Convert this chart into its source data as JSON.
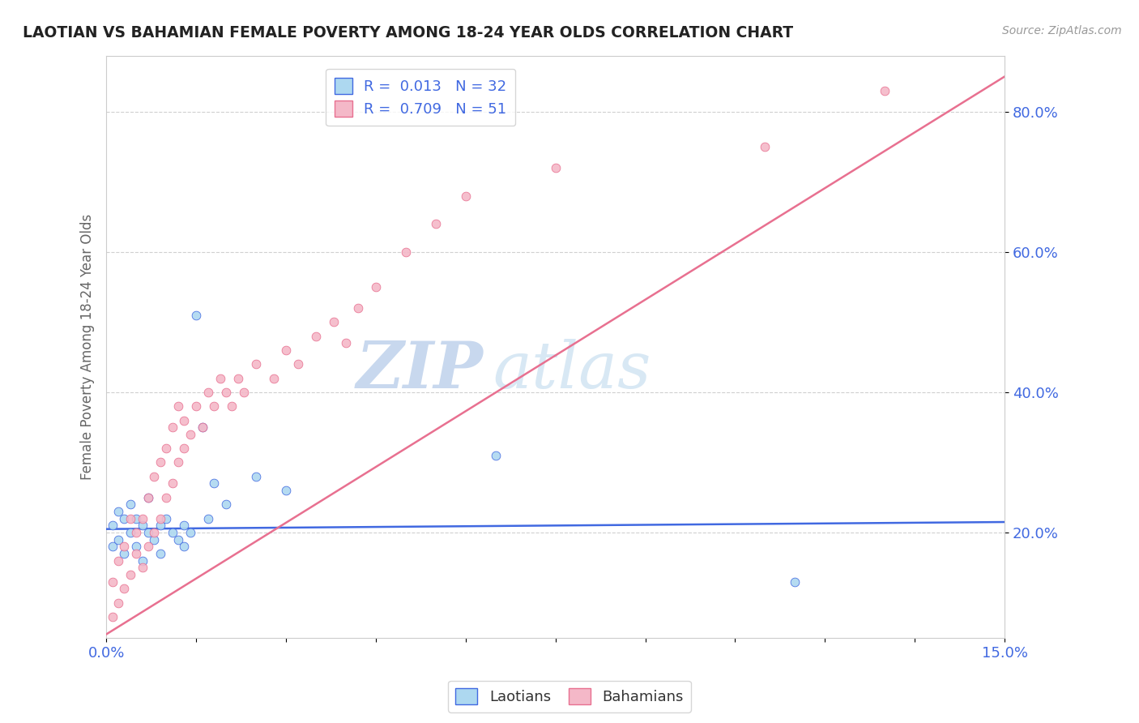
{
  "title": "LAOTIAN VS BAHAMIAN FEMALE POVERTY AMONG 18-24 YEAR OLDS CORRELATION CHART",
  "source": "Source: ZipAtlas.com",
  "ylabel": "Female Poverty Among 18-24 Year Olds",
  "xlim": [
    0.0,
    0.15
  ],
  "ylim": [
    0.05,
    0.88
  ],
  "yticks": [
    0.2,
    0.4,
    0.6,
    0.8
  ],
  "ytick_labels": [
    "20.0%",
    "40.0%",
    "60.0%",
    "80.0%"
  ],
  "xticks": [
    0.0,
    0.015,
    0.03,
    0.045,
    0.06,
    0.075,
    0.09,
    0.105,
    0.12,
    0.135,
    0.15
  ],
  "xtick_labels": [
    "0.0%",
    "",
    "",
    "",
    "",
    "",
    "",
    "",
    "",
    "",
    "15.0%"
  ],
  "laotian_R": "0.013",
  "laotian_N": "32",
  "bahamian_R": "0.709",
  "bahamian_N": "51",
  "laotian_color": "#add8f0",
  "bahamian_color": "#f4b8c8",
  "laotian_line_color": "#4169E1",
  "bahamian_line_color": "#e87090",
  "watermark_zip": "ZIP",
  "watermark_atlas": "atlas",
  "background_color": "#FFFFFF",
  "laotian_x": [
    0.001,
    0.001,
    0.002,
    0.002,
    0.003,
    0.003,
    0.004,
    0.004,
    0.005,
    0.005,
    0.006,
    0.006,
    0.007,
    0.007,
    0.008,
    0.009,
    0.009,
    0.01,
    0.011,
    0.012,
    0.013,
    0.013,
    0.014,
    0.015,
    0.016,
    0.017,
    0.018,
    0.02,
    0.025,
    0.03,
    0.065,
    0.115
  ],
  "laotian_y": [
    0.21,
    0.18,
    0.23,
    0.19,
    0.22,
    0.17,
    0.24,
    0.2,
    0.22,
    0.18,
    0.21,
    0.16,
    0.2,
    0.25,
    0.19,
    0.17,
    0.21,
    0.22,
    0.2,
    0.19,
    0.18,
    0.21,
    0.2,
    0.51,
    0.35,
    0.22,
    0.27,
    0.24,
    0.28,
    0.26,
    0.31,
    0.13
  ],
  "bahamian_x": [
    0.001,
    0.001,
    0.002,
    0.002,
    0.003,
    0.003,
    0.004,
    0.004,
    0.005,
    0.005,
    0.006,
    0.006,
    0.007,
    0.007,
    0.008,
    0.008,
    0.009,
    0.009,
    0.01,
    0.01,
    0.011,
    0.011,
    0.012,
    0.012,
    0.013,
    0.013,
    0.014,
    0.015,
    0.016,
    0.017,
    0.018,
    0.019,
    0.02,
    0.021,
    0.022,
    0.023,
    0.025,
    0.028,
    0.03,
    0.032,
    0.035,
    0.038,
    0.04,
    0.042,
    0.045,
    0.05,
    0.055,
    0.06,
    0.075,
    0.11,
    0.13
  ],
  "bahamian_y": [
    0.08,
    0.13,
    0.1,
    0.16,
    0.12,
    0.18,
    0.14,
    0.22,
    0.17,
    0.2,
    0.15,
    0.22,
    0.18,
    0.25,
    0.2,
    0.28,
    0.22,
    0.3,
    0.25,
    0.32,
    0.27,
    0.35,
    0.3,
    0.38,
    0.32,
    0.36,
    0.34,
    0.38,
    0.35,
    0.4,
    0.38,
    0.42,
    0.4,
    0.38,
    0.42,
    0.4,
    0.44,
    0.42,
    0.46,
    0.44,
    0.48,
    0.5,
    0.47,
    0.52,
    0.55,
    0.6,
    0.64,
    0.68,
    0.72,
    0.75,
    0.83
  ],
  "laotian_trend_x": [
    0.0,
    0.15
  ],
  "laotian_trend_y": [
    0.205,
    0.215
  ],
  "bahamian_trend_x": [
    0.0,
    0.15
  ],
  "bahamian_trend_y": [
    0.055,
    0.85
  ]
}
